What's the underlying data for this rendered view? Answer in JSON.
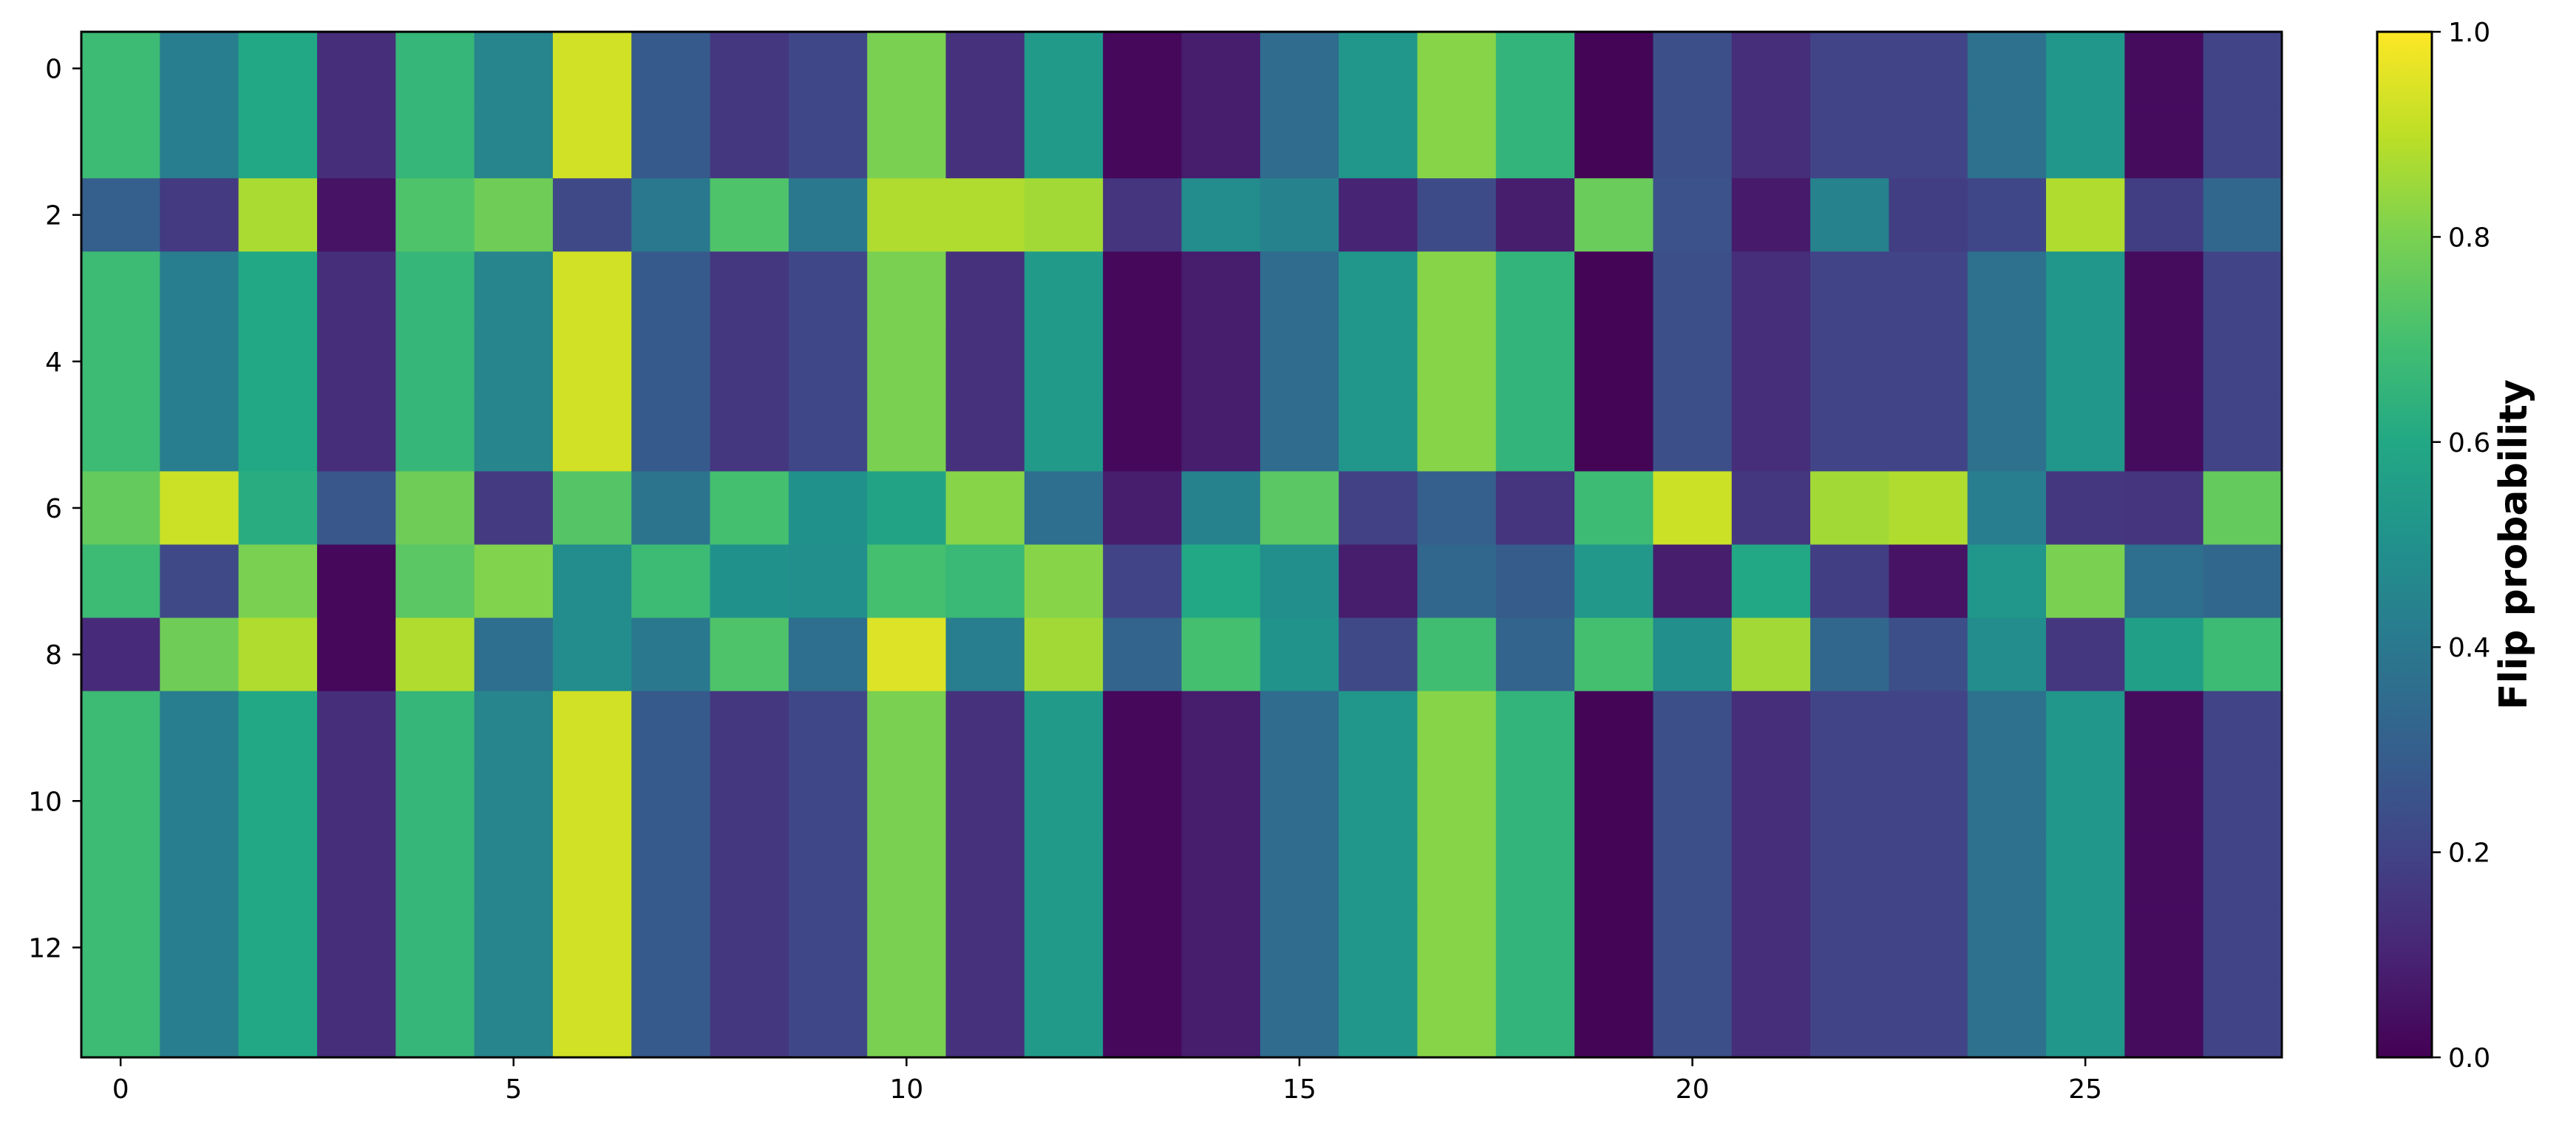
{
  "chart_data": {
    "type": "heatmap",
    "title": "",
    "xlabel": "",
    "ylabel": "",
    "n_rows": 14,
    "n_cols": 28,
    "x_ticks": [
      0,
      5,
      10,
      15,
      20,
      25
    ],
    "y_ticks": [
      0,
      2,
      4,
      6,
      8,
      10,
      12
    ],
    "colorbar": {
      "label": "Flip probability",
      "range": [
        0,
        1
      ],
      "ticks": [
        "0.0",
        "0.2",
        "0.4",
        "0.6",
        "0.8",
        "1.0"
      ],
      "colormap": "viridis"
    },
    "values": [
      [
        0.68,
        0.42,
        0.6,
        0.13,
        0.66,
        0.45,
        0.93,
        0.28,
        0.16,
        0.21,
        0.8,
        0.14,
        0.54,
        0.02,
        0.08,
        0.35,
        0.52,
        0.82,
        0.65,
        0.01,
        0.24,
        0.13,
        0.2,
        0.2,
        0.37,
        0.52,
        0.03,
        0.2
      ],
      [
        0.68,
        0.42,
        0.6,
        0.13,
        0.66,
        0.45,
        0.93,
        0.28,
        0.16,
        0.21,
        0.8,
        0.14,
        0.54,
        0.02,
        0.08,
        0.35,
        0.52,
        0.82,
        0.65,
        0.01,
        0.24,
        0.13,
        0.2,
        0.2,
        0.37,
        0.52,
        0.03,
        0.2
      ],
      [
        0.3,
        0.17,
        0.87,
        0.05,
        0.72,
        0.78,
        0.22,
        0.4,
        0.72,
        0.4,
        0.88,
        0.88,
        0.86,
        0.15,
        0.48,
        0.44,
        0.1,
        0.23,
        0.08,
        0.77,
        0.25,
        0.07,
        0.44,
        0.18,
        0.21,
        0.88,
        0.18,
        0.33
      ],
      [
        0.68,
        0.42,
        0.6,
        0.13,
        0.66,
        0.45,
        0.93,
        0.28,
        0.16,
        0.21,
        0.8,
        0.14,
        0.54,
        0.02,
        0.08,
        0.35,
        0.52,
        0.82,
        0.65,
        0.01,
        0.24,
        0.13,
        0.2,
        0.2,
        0.37,
        0.52,
        0.03,
        0.2
      ],
      [
        0.68,
        0.42,
        0.6,
        0.13,
        0.66,
        0.45,
        0.93,
        0.28,
        0.16,
        0.21,
        0.8,
        0.14,
        0.54,
        0.02,
        0.08,
        0.35,
        0.52,
        0.82,
        0.65,
        0.01,
        0.24,
        0.13,
        0.2,
        0.2,
        0.37,
        0.52,
        0.03,
        0.2
      ],
      [
        0.68,
        0.42,
        0.6,
        0.13,
        0.66,
        0.45,
        0.93,
        0.28,
        0.16,
        0.21,
        0.8,
        0.14,
        0.54,
        0.02,
        0.08,
        0.35,
        0.52,
        0.82,
        0.65,
        0.01,
        0.24,
        0.13,
        0.2,
        0.2,
        0.37,
        0.52,
        0.03,
        0.2
      ],
      [
        0.76,
        0.92,
        0.62,
        0.27,
        0.78,
        0.17,
        0.73,
        0.38,
        0.7,
        0.5,
        0.58,
        0.82,
        0.36,
        0.08,
        0.44,
        0.74,
        0.19,
        0.3,
        0.15,
        0.68,
        0.92,
        0.16,
        0.86,
        0.88,
        0.42,
        0.16,
        0.15,
        0.76
      ],
      [
        0.68,
        0.22,
        0.8,
        0.02,
        0.74,
        0.81,
        0.48,
        0.68,
        0.5,
        0.49,
        0.7,
        0.67,
        0.82,
        0.2,
        0.6,
        0.49,
        0.08,
        0.33,
        0.29,
        0.53,
        0.08,
        0.6,
        0.18,
        0.05,
        0.52,
        0.8,
        0.36,
        0.33
      ],
      [
        0.12,
        0.78,
        0.88,
        0.02,
        0.88,
        0.36,
        0.48,
        0.4,
        0.72,
        0.36,
        0.95,
        0.42,
        0.86,
        0.32,
        0.7,
        0.51,
        0.22,
        0.69,
        0.32,
        0.7,
        0.49,
        0.86,
        0.33,
        0.24,
        0.48,
        0.16,
        0.56,
        0.68
      ],
      [
        0.68,
        0.42,
        0.6,
        0.13,
        0.66,
        0.45,
        0.93,
        0.28,
        0.16,
        0.21,
        0.8,
        0.14,
        0.54,
        0.02,
        0.08,
        0.35,
        0.52,
        0.82,
        0.65,
        0.01,
        0.24,
        0.13,
        0.2,
        0.2,
        0.37,
        0.52,
        0.03,
        0.2
      ],
      [
        0.68,
        0.42,
        0.6,
        0.13,
        0.66,
        0.45,
        0.93,
        0.28,
        0.16,
        0.21,
        0.8,
        0.14,
        0.54,
        0.02,
        0.08,
        0.35,
        0.52,
        0.82,
        0.65,
        0.01,
        0.24,
        0.13,
        0.2,
        0.2,
        0.37,
        0.52,
        0.03,
        0.2
      ],
      [
        0.68,
        0.42,
        0.6,
        0.13,
        0.66,
        0.45,
        0.93,
        0.28,
        0.16,
        0.21,
        0.8,
        0.14,
        0.54,
        0.02,
        0.08,
        0.35,
        0.52,
        0.82,
        0.65,
        0.01,
        0.24,
        0.13,
        0.2,
        0.2,
        0.37,
        0.52,
        0.03,
        0.2
      ],
      [
        0.68,
        0.42,
        0.6,
        0.13,
        0.66,
        0.45,
        0.93,
        0.28,
        0.16,
        0.21,
        0.8,
        0.14,
        0.54,
        0.02,
        0.08,
        0.35,
        0.52,
        0.82,
        0.65,
        0.01,
        0.24,
        0.13,
        0.2,
        0.2,
        0.37,
        0.52,
        0.03,
        0.2
      ],
      [
        0.68,
        0.42,
        0.6,
        0.13,
        0.66,
        0.45,
        0.93,
        0.28,
        0.16,
        0.21,
        0.8,
        0.14,
        0.54,
        0.02,
        0.08,
        0.35,
        0.52,
        0.82,
        0.65,
        0.01,
        0.24,
        0.13,
        0.2,
        0.2,
        0.37,
        0.52,
        0.03,
        0.2
      ]
    ]
  }
}
